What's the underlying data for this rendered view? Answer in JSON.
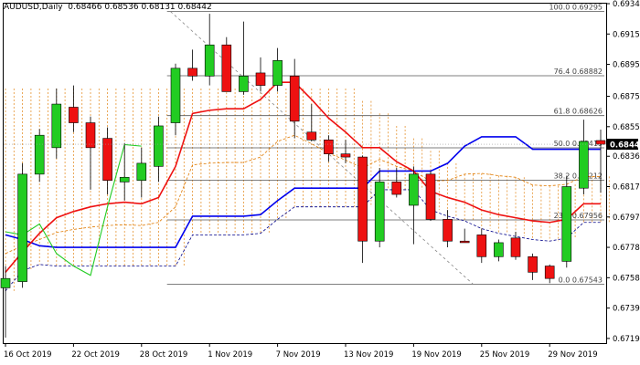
{
  "header": {
    "symbol": "AUDUSD,Daily",
    "ohlc": "0.68466 0.68536 0.68131 0.68442"
  },
  "chart_data": {
    "type": "candlestick",
    "ylim": [
      0.67165,
      0.69345
    ],
    "y_ticks": [
      "0.69345",
      "0.69150",
      "0.68955",
      "0.68750",
      "0.68555",
      "0.68365",
      "0.68170",
      "0.67975",
      "0.67780",
      "0.67585",
      "0.67390",
      "0.67195"
    ],
    "x_ticks": [
      {
        "label": "16 Oct 2019",
        "index": 0
      },
      {
        "label": "22 Oct 2019",
        "index": 4
      },
      {
        "label": "28 Oct 2019",
        "index": 8
      },
      {
        "label": "1 Nov 2019",
        "index": 12
      },
      {
        "label": "7 Nov 2019",
        "index": 16
      },
      {
        "label": "13 Nov 2019",
        "index": 20
      },
      {
        "label": "19 Nov 2019",
        "index": 24
      },
      {
        "label": "25 Nov 2019",
        "index": 28
      },
      {
        "label": "29 Nov 2019",
        "index": 32
      }
    ],
    "last_price": "0.68442",
    "colors": {
      "bull": "#22cc22",
      "bear": "#ee1111",
      "ma_red": "#ee1111",
      "ma_blue": "#0000ee",
      "ma_green": "#22cc22",
      "fib": "#555555",
      "cloud": "#e07a00",
      "span_b": "#000088",
      "tenkan": "#e07a00"
    },
    "candles": [
      {
        "o": 0.6752,
        "h": 0.6766,
        "l": 0.672,
        "c": 0.6758
      },
      {
        "o": 0.6756,
        "h": 0.6832,
        "l": 0.6752,
        "c": 0.6825
      },
      {
        "o": 0.6825,
        "h": 0.6854,
        "l": 0.682,
        "c": 0.685
      },
      {
        "o": 0.6842,
        "h": 0.688,
        "l": 0.6835,
        "c": 0.687
      },
      {
        "o": 0.6868,
        "h": 0.6882,
        "l": 0.6852,
        "c": 0.6858
      },
      {
        "o": 0.6858,
        "h": 0.6862,
        "l": 0.6815,
        "c": 0.6842
      },
      {
        "o": 0.6848,
        "h": 0.6855,
        "l": 0.6812,
        "c": 0.6821
      },
      {
        "o": 0.682,
        "h": 0.6845,
        "l": 0.6808,
        "c": 0.6823
      },
      {
        "o": 0.6821,
        "h": 0.6842,
        "l": 0.681,
        "c": 0.6832
      },
      {
        "o": 0.683,
        "h": 0.6862,
        "l": 0.682,
        "c": 0.6856
      },
      {
        "o": 0.6858,
        "h": 0.6896,
        "l": 0.685,
        "c": 0.6893
      },
      {
        "o": 0.6893,
        "h": 0.6905,
        "l": 0.6885,
        "c": 0.6888
      },
      {
        "o": 0.6888,
        "h": 0.6928,
        "l": 0.6882,
        "c": 0.6908
      },
      {
        "o": 0.6908,
        "h": 0.6913,
        "l": 0.6878,
        "c": 0.6878
      },
      {
        "o": 0.6878,
        "h": 0.6923,
        "l": 0.6876,
        "c": 0.6888
      },
      {
        "o": 0.689,
        "h": 0.69,
        "l": 0.6878,
        "c": 0.6882
      },
      {
        "o": 0.6882,
        "h": 0.6906,
        "l": 0.6878,
        "c": 0.6898
      },
      {
        "o": 0.6888,
        "h": 0.6899,
        "l": 0.6848,
        "c": 0.6859
      },
      {
        "o": 0.6852,
        "h": 0.687,
        "l": 0.6846,
        "c": 0.6847
      },
      {
        "o": 0.6847,
        "h": 0.685,
        "l": 0.6833,
        "c": 0.6838
      },
      {
        "o": 0.6838,
        "h": 0.6847,
        "l": 0.6832,
        "c": 0.6836
      },
      {
        "o": 0.6836,
        "h": 0.6837,
        "l": 0.6768,
        "c": 0.6782
      },
      {
        "o": 0.6782,
        "h": 0.6829,
        "l": 0.6778,
        "c": 0.682
      },
      {
        "o": 0.682,
        "h": 0.6829,
        "l": 0.681,
        "c": 0.6812
      },
      {
        "o": 0.6805,
        "h": 0.683,
        "l": 0.678,
        "c": 0.6825
      },
      {
        "o": 0.6825,
        "h": 0.6827,
        "l": 0.6795,
        "c": 0.6796
      },
      {
        "o": 0.6796,
        "h": 0.6802,
        "l": 0.6778,
        "c": 0.6782
      },
      {
        "o": 0.6782,
        "h": 0.679,
        "l": 0.6781,
        "c": 0.6781
      },
      {
        "o": 0.6786,
        "h": 0.679,
        "l": 0.6768,
        "c": 0.6772
      },
      {
        "o": 0.6772,
        "h": 0.6783,
        "l": 0.6769,
        "c": 0.6781
      },
      {
        "o": 0.6784,
        "h": 0.6788,
        "l": 0.677,
        "c": 0.6772
      },
      {
        "o": 0.6772,
        "h": 0.6774,
        "l": 0.6757,
        "c": 0.6762
      },
      {
        "o": 0.6766,
        "h": 0.6767,
        "l": 0.6755,
        "c": 0.6758
      },
      {
        "o": 0.6769,
        "h": 0.6824,
        "l": 0.6765,
        "c": 0.6817
      },
      {
        "o": 0.6816,
        "h": 0.686,
        "l": 0.6812,
        "c": 0.6846
      },
      {
        "o": 0.68466,
        "h": 0.68536,
        "l": 0.68131,
        "c": 0.68442
      }
    ],
    "ma_red": [
      0.6762,
      0.6775,
      0.6787,
      0.6797,
      0.6801,
      0.6804,
      0.6806,
      0.6807,
      0.6806,
      0.681,
      0.683,
      0.6864,
      0.6866,
      0.6867,
      0.6867,
      0.6873,
      0.6884,
      0.6884,
      0.6873,
      0.6861,
      0.6852,
      0.6842,
      0.6842,
      0.6833,
      0.6827,
      0.6814,
      0.681,
      0.6807,
      0.6802,
      0.6799,
      0.6797,
      0.6795,
      0.6794,
      0.6796,
      0.6806,
      0.6806
    ],
    "ma_blue": [
      0.6786,
      0.6783,
      0.6779,
      0.6778,
      0.6778,
      0.6778,
      0.6778,
      0.6778,
      0.6778,
      0.6778,
      0.6778,
      0.6798,
      0.6798,
      0.6798,
      0.6798,
      0.6799,
      0.6808,
      0.6816,
      0.6816,
      0.6816,
      0.6816,
      0.6816,
      0.6827,
      0.6827,
      0.6827,
      0.6827,
      0.6832,
      0.6843,
      0.6849,
      0.6849,
      0.6849,
      0.6841,
      0.6841,
      0.6841,
      0.6841,
      0.6841
    ],
    "ma_green": [
      0.6788,
      0.6786,
      0.6793,
      0.6774,
      0.6766,
      0.676,
      0.6804,
      0.6844,
      0.6843
    ],
    "fib_levels": [
      {
        "label": "100.0",
        "value": "0.69295"
      },
      {
        "label": "76.4",
        "value": "0.68882"
      },
      {
        "label": "61.8",
        "value": "0.68626"
      },
      {
        "label": "50.0",
        "value": "0.68419"
      },
      {
        "label": "38.2",
        "value": "0.68212"
      },
      {
        "label": "23.6",
        "value": "0.67956"
      },
      {
        "label": "0.0",
        "value": "0.67543"
      }
    ]
  }
}
